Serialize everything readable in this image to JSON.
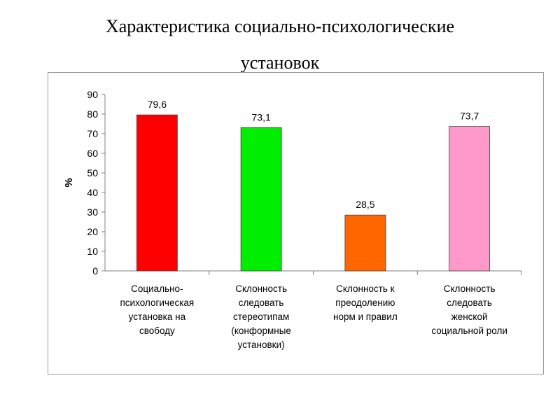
{
  "title": {
    "line1": "Характеристика социально-психологические",
    "line2": "установок"
  },
  "chart_data": {
    "type": "bar",
    "ylabel": "%",
    "ylim": [
      0,
      90
    ],
    "yticks": [
      0,
      10,
      20,
      30,
      40,
      50,
      60,
      70,
      80,
      90
    ],
    "ytick_labels": [
      "0",
      "10",
      "20",
      "30",
      "40",
      "50",
      "60",
      "70",
      "80",
      "90"
    ],
    "categories": [
      [
        "Социально-",
        "психологическая",
        "установка на",
        "свободу"
      ],
      [
        "Склонность",
        "следовать",
        "стереотипам",
        "(конформные",
        "установки)"
      ],
      [
        "Склонность к",
        "преодолению",
        "норм и правил"
      ],
      [
        "Склонность",
        "следовать",
        "женской",
        "социальной роли"
      ]
    ],
    "values": [
      79.6,
      73.1,
      28.5,
      73.7
    ],
    "value_labels": [
      "79,6",
      "73,1",
      "28,5",
      "73,7"
    ],
    "colors": [
      "#ff0000",
      "#00ee00",
      "#ff6600",
      "#ff99cc"
    ],
    "grid": false,
    "legend": "none"
  }
}
